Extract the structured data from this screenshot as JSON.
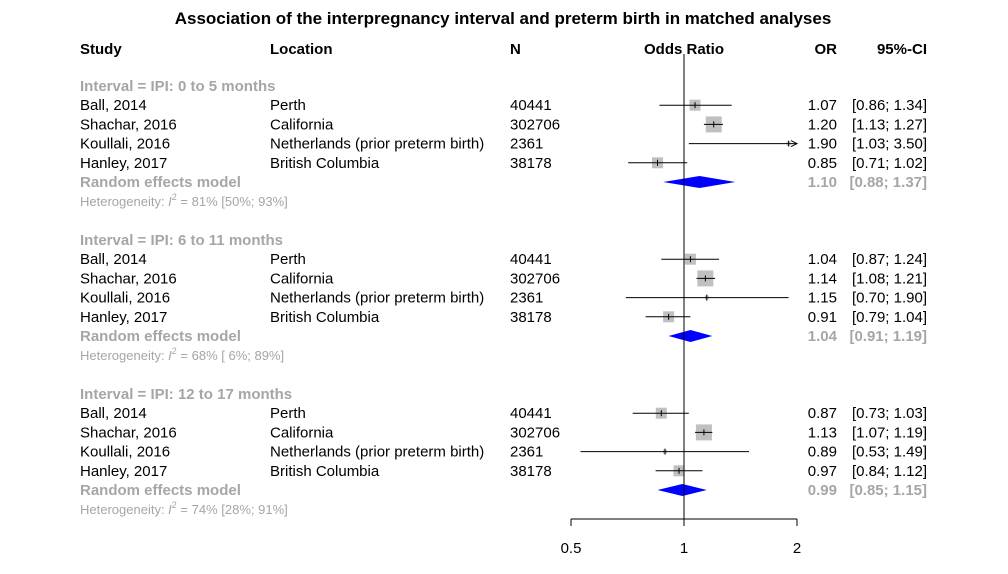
{
  "chart_data": {
    "type": "forest",
    "title": "Association of the interpregnancy interval and preterm birth in matched analyses",
    "columns": {
      "study": "Study",
      "location": "Location",
      "n": "N",
      "plot": "Odds Ratio",
      "or": "OR",
      "ci": "95%-CI"
    },
    "scale": "log",
    "xlim": [
      0.5,
      2
    ],
    "reference_line": 1,
    "x_ticks": [
      0.5,
      1,
      2
    ],
    "x_tick_labels": [
      "0.5",
      "1",
      "2"
    ],
    "colors": {
      "box": "#c0c0c0",
      "diamond": "#0000ff",
      "line": "#000000",
      "summary_text": "#a6a6a6"
    },
    "groups": [
      {
        "label": "Interval = IPI:  0 to 5 months",
        "studies": [
          {
            "study": "Ball, 2014",
            "location": "Perth",
            "n": "40441",
            "or": 1.07,
            "lower": 0.86,
            "upper": 1.34,
            "or_text": "1.07",
            "ci_text": "[0.86; 1.34]"
          },
          {
            "study": "Shachar, 2016",
            "location": "California",
            "n": "302706",
            "or": 1.2,
            "lower": 1.13,
            "upper": 1.27,
            "or_text": "1.20",
            "ci_text": "[1.13; 1.27]"
          },
          {
            "study": "Koullali, 2016",
            "location": "Netherlands (prior preterm birth)",
            "n": "2361",
            "or": 1.9,
            "lower": 1.03,
            "upper": 3.5,
            "or_text": "1.90",
            "ci_text": "[1.03; 3.50]"
          },
          {
            "study": "Hanley, 2017",
            "location": "British Columbia",
            "n": "38178",
            "or": 0.85,
            "lower": 0.71,
            "upper": 1.02,
            "or_text": "0.85",
            "ci_text": "[0.71; 1.02]"
          }
        ],
        "summary": {
          "label": "Random effects model",
          "or": 1.1,
          "lower": 0.88,
          "upper": 1.37,
          "or_text": "1.10",
          "ci_text": "[0.88; 1.37]"
        },
        "heterogeneity": {
          "prefix": "Heterogeneity: ",
          "i_symbol": "I",
          "superscript": "2",
          "text": " = 81% [50%; 93%]"
        }
      },
      {
        "label": "Interval = IPI:  6 to 11 months",
        "studies": [
          {
            "study": "Ball, 2014",
            "location": "Perth",
            "n": "40441",
            "or": 1.04,
            "lower": 0.87,
            "upper": 1.24,
            "or_text": "1.04",
            "ci_text": "[0.87; 1.24]"
          },
          {
            "study": "Shachar, 2016",
            "location": "California",
            "n": "302706",
            "or": 1.14,
            "lower": 1.08,
            "upper": 1.21,
            "or_text": "1.14",
            "ci_text": "[1.08; 1.21]"
          },
          {
            "study": "Koullali, 2016",
            "location": "Netherlands (prior preterm birth)",
            "n": "2361",
            "or": 1.15,
            "lower": 0.7,
            "upper": 1.9,
            "or_text": "1.15",
            "ci_text": "[0.70; 1.90]"
          },
          {
            "study": "Hanley, 2017",
            "location": "British Columbia",
            "n": "38178",
            "or": 0.91,
            "lower": 0.79,
            "upper": 1.04,
            "or_text": "0.91",
            "ci_text": "[0.79; 1.04]"
          }
        ],
        "summary": {
          "label": "Random effects model",
          "or": 1.04,
          "lower": 0.91,
          "upper": 1.19,
          "or_text": "1.04",
          "ci_text": "[0.91; 1.19]"
        },
        "heterogeneity": {
          "prefix": "Heterogeneity: ",
          "i_symbol": "I",
          "superscript": "2",
          "text": " = 68% [ 6%; 89%]"
        }
      },
      {
        "label": "Interval = IPI: 12 to 17 months",
        "studies": [
          {
            "study": "Ball, 2014",
            "location": "Perth",
            "n": "40441",
            "or": 0.87,
            "lower": 0.73,
            "upper": 1.03,
            "or_text": "0.87",
            "ci_text": "[0.73; 1.03]"
          },
          {
            "study": "Shachar, 2016",
            "location": "California",
            "n": "302706",
            "or": 1.13,
            "lower": 1.07,
            "upper": 1.19,
            "or_text": "1.13",
            "ci_text": "[1.07; 1.19]"
          },
          {
            "study": "Koullali, 2016",
            "location": "Netherlands (prior preterm birth)",
            "n": "2361",
            "or": 0.89,
            "lower": 0.53,
            "upper": 1.49,
            "or_text": "0.89",
            "ci_text": "[0.53; 1.49]"
          },
          {
            "study": "Hanley, 2017",
            "location": "British Columbia",
            "n": "38178",
            "or": 0.97,
            "lower": 0.84,
            "upper": 1.12,
            "or_text": "0.97",
            "ci_text": "[0.84; 1.12]"
          }
        ],
        "summary": {
          "label": "Random effects model",
          "or": 0.99,
          "lower": 0.85,
          "upper": 1.15,
          "or_text": "0.99",
          "ci_text": "[0.85; 1.15]"
        },
        "heterogeneity": {
          "prefix": "Heterogeneity: ",
          "i_symbol": "I",
          "superscript": "2",
          "text": " = 74% [28%; 91%]"
        }
      }
    ]
  }
}
